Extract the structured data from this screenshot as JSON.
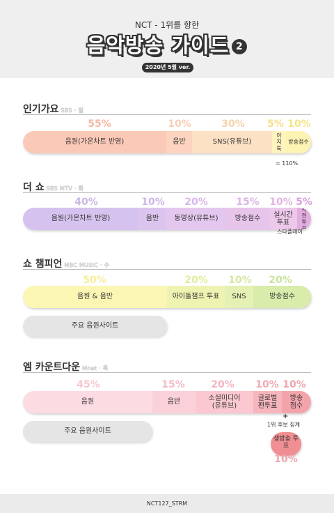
{
  "header": {
    "subtitle": "NCT - 1위를 향한",
    "title": "음악방송 가이드",
    "title_number": "2",
    "version": "2020년 5월 ver."
  },
  "sections": [
    {
      "title": "인기가요",
      "tag": "SBS · 일",
      "segments": [
        {
          "label": "음원(가온차트 반영)",
          "percent": "55%",
          "color": "#fbc9b8",
          "pct_color": "#f6b8a6"
        },
        {
          "label": "음반",
          "percent": "10%",
          "color": "#fcd4c0",
          "pct_color": "#f8cdb7"
        },
        {
          "label": "SNS(유튜브)",
          "percent": "30%",
          "color": "#fde1c4",
          "pct_color": "#f6d2ad"
        },
        {
          "label": "아지톡",
          "percent": "5%",
          "color": "#fff3c0",
          "pct_color": "#f7df86"
        },
        {
          "label": "방송점수",
          "percent": "10%",
          "color": "#fdf3b3",
          "pct_color": "#f4e487"
        }
      ],
      "note": "= 110%"
    },
    {
      "title": "더 쇼",
      "tag": "SBS MTV · 화",
      "segments": [
        {
          "label": "음원(가온차트 반영)",
          "percent": "40%",
          "color": "#d6c2ee",
          "pct_color": "#cab8e4"
        },
        {
          "label": "음반",
          "percent": "10%",
          "color": "#dbc5ee",
          "pct_color": "#cdb6e9"
        },
        {
          "label": "동영상(유튜브)",
          "percent": "20%",
          "color": "#e4c7ef",
          "pct_color": "#d8b7ea"
        },
        {
          "label": "방송점수",
          "percent": "15%",
          "color": "#e7c5eb",
          "pct_color": "#dbb4e7"
        },
        {
          "label": "실시간 투표",
          "percent": "10%",
          "color": "#ecc8ea",
          "pct_color": "#e2b3e3"
        },
        {
          "label": "사전 투표",
          "percent": "5%",
          "color": "#e3ade0",
          "pct_color": "#d9a0dc"
        }
      ],
      "note": "스타플레이"
    },
    {
      "title": "쇼 챔피언",
      "tag": "MBC MUSIC · 수",
      "segments": [
        {
          "label": "음원 & 음반",
          "percent": "50%",
          "color": "#fbf6b4",
          "pct_color": "#f6ee9a"
        },
        {
          "label": "아이돌챔프 투표",
          "percent": "20%",
          "color": "#eef3b2",
          "pct_color": "#e1ec9c"
        },
        {
          "label": "SNS",
          "percent": "10%",
          "color": "#e5f1b4",
          "pct_color": "#d4e7a0"
        },
        {
          "label": "방송점수",
          "percent": "20%",
          "color": "#d9ecab",
          "pct_color": "#c8e29a"
        }
      ],
      "pill": "주요 음원사이트"
    },
    {
      "title": "엠 카운트다운",
      "tag": "Mnet · 목",
      "segments": [
        {
          "label": "음원",
          "percent": "45%",
          "color": "#fcdbe2",
          "pct_color": "#f7c6d0"
        },
        {
          "label": "음반",
          "percent": "15%",
          "color": "#fbd1d9",
          "pct_color": "#f6bbc6"
        },
        {
          "label": "소셜미디어 (유튜브)",
          "percent": "20%",
          "color": "#fbc8d1",
          "pct_color": "#f4b6c1"
        },
        {
          "label": "글로벌 팬투표",
          "percent": "10%",
          "color": "#f7b5bd",
          "pct_color": "#f1a9b2"
        },
        {
          "label": "방송 점수",
          "percent": "10%",
          "color": "#f3a4ab",
          "pct_color": "#f0a5ad"
        }
      ],
      "pill": "주요 음원사이트",
      "note": "1위 후보 집계",
      "plus": "+",
      "extra_label": "생방송 투표",
      "extra_percent": "10%"
    }
  ],
  "footer": "NCT127_STRM"
}
